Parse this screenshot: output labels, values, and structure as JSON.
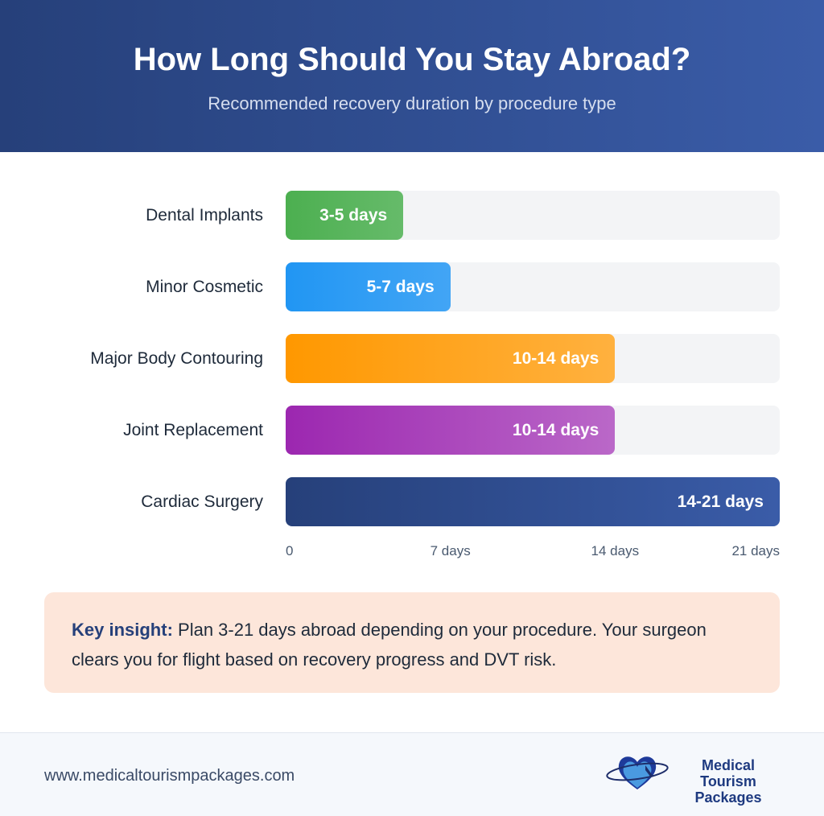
{
  "header": {
    "title": "How Long Should You Stay Abroad?",
    "subtitle": "Recommended recovery duration by procedure type"
  },
  "chart_data": {
    "type": "bar",
    "orientation": "horizontal",
    "title": "How Long Should You Stay Abroad?",
    "subtitle": "Recommended recovery duration by procedure type",
    "categories": [
      "Dental Implants",
      "Minor Cosmetic",
      "Major Body Contouring",
      "Joint Replacement",
      "Cardiac Surgery"
    ],
    "values": [
      5,
      7,
      14,
      14,
      21
    ],
    "ranges": [
      [
        3,
        5
      ],
      [
        5,
        7
      ],
      [
        10,
        14
      ],
      [
        10,
        14
      ],
      [
        14,
        21
      ]
    ],
    "data_labels": [
      "3-5 days",
      "5-7 days",
      "10-14 days",
      "10-14 days",
      "14-21 days"
    ],
    "colors": [
      [
        "#4caf50",
        "#66bb6a"
      ],
      [
        "#2196f3",
        "#42a5f5"
      ],
      [
        "#ff9800",
        "#ffb13f"
      ],
      [
        "#9c27b0",
        "#ba68c8"
      ],
      [
        "#26407a",
        "#3a5ca8"
      ]
    ],
    "xlim": [
      0,
      21
    ],
    "xticks": [
      0,
      7,
      14,
      21
    ],
    "xtick_labels": [
      "0",
      "7 days",
      "14 days",
      "21 days"
    ],
    "grid": false
  },
  "insight": {
    "label": "Key insight:",
    "text": " Plan 3-21 days abroad depending on your procedure. Your surgeon clears you for flight based on recovery progress and DVT risk."
  },
  "footer": {
    "url": "www.medicaltourismpackages.com",
    "logo_line1": "Medical Tourism",
    "logo_line2": "Packages"
  }
}
